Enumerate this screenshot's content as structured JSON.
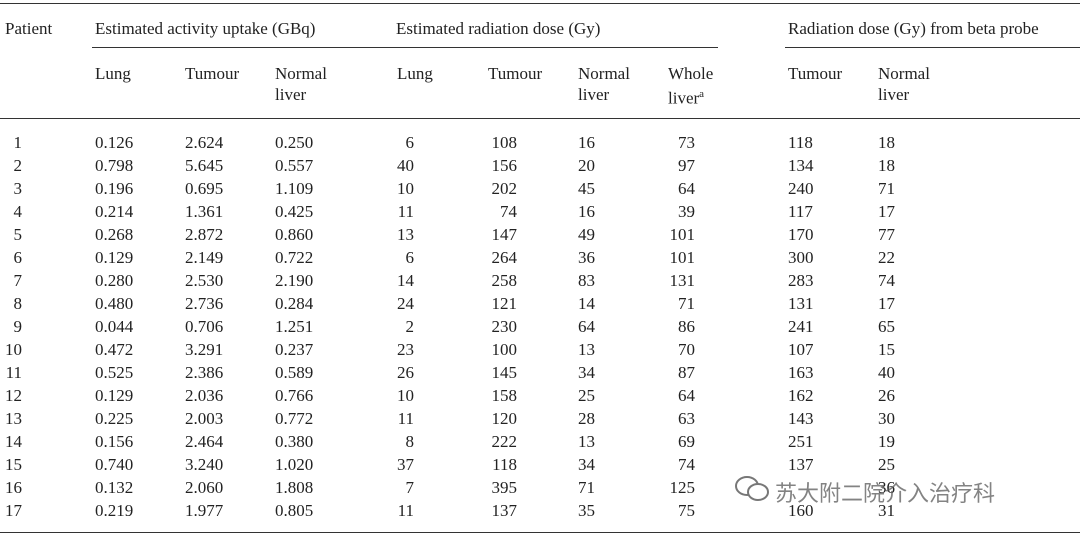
{
  "table": {
    "patient_header": "Patient",
    "groups": [
      "Estimated activity uptake (GBq)",
      "Estimated radiation dose (Gy)",
      "Radiation dose (Gy) from beta probe"
    ],
    "subheaders": [
      "Lung",
      "Tumour",
      "Normal\nliver",
      "Lung",
      "Tumour",
      "Normal\nliver",
      "Whole\nliver",
      "Tumour",
      "Normal\nliver"
    ],
    "footnote_mark": "a",
    "rows": [
      [
        "1",
        "0.126",
        "2.624",
        "0.250",
        "6",
        "108",
        "16",
        "73",
        "118",
        "18"
      ],
      [
        "2",
        "0.798",
        "5.645",
        "0.557",
        "40",
        "156",
        "20",
        "97",
        "134",
        "18"
      ],
      [
        "3",
        "0.196",
        "0.695",
        "1.109",
        "10",
        "202",
        "45",
        "64",
        "240",
        "71"
      ],
      [
        "4",
        "0.214",
        "1.361",
        "0.425",
        "11",
        "74",
        "16",
        "39",
        "117",
        "17"
      ],
      [
        "5",
        "0.268",
        "2.872",
        "0.860",
        "13",
        "147",
        "49",
        "101",
        "170",
        "77"
      ],
      [
        "6",
        "0.129",
        "2.149",
        "0.722",
        "6",
        "264",
        "36",
        "101",
        "300",
        "22"
      ],
      [
        "7",
        "0.280",
        "2.530",
        "2.190",
        "14",
        "258",
        "83",
        "131",
        "283",
        "74"
      ],
      [
        "8",
        "0.480",
        "2.736",
        "0.284",
        "24",
        "121",
        "14",
        "71",
        "131",
        "17"
      ],
      [
        "9",
        "0.044",
        "0.706",
        "1.251",
        "2",
        "230",
        "64",
        "86",
        "241",
        "65"
      ],
      [
        "10",
        "0.472",
        "3.291",
        "0.237",
        "23",
        "100",
        "13",
        "70",
        "107",
        "15"
      ],
      [
        "11",
        "0.525",
        "2.386",
        "0.589",
        "26",
        "145",
        "34",
        "87",
        "163",
        "40"
      ],
      [
        "12",
        "0.129",
        "2.036",
        "0.766",
        "10",
        "158",
        "25",
        "64",
        "162",
        "26"
      ],
      [
        "13",
        "0.225",
        "2.003",
        "0.772",
        "11",
        "120",
        "28",
        "63",
        "143",
        "30"
      ],
      [
        "14",
        "0.156",
        "2.464",
        "0.380",
        "8",
        "222",
        "13",
        "69",
        "251",
        "19"
      ],
      [
        "15",
        "0.740",
        "3.240",
        "1.020",
        "37",
        "118",
        "34",
        "74",
        "137",
        "25"
      ],
      [
        "16",
        "0.132",
        "2.060",
        "1.808",
        "7",
        "395",
        "71",
        "125",
        null,
        "36"
      ],
      [
        "17",
        "0.219",
        "1.977",
        "0.805",
        "11",
        "137",
        "35",
        "75",
        "160",
        "31"
      ]
    ]
  },
  "watermark": "苏大附二院介入治疗科"
}
